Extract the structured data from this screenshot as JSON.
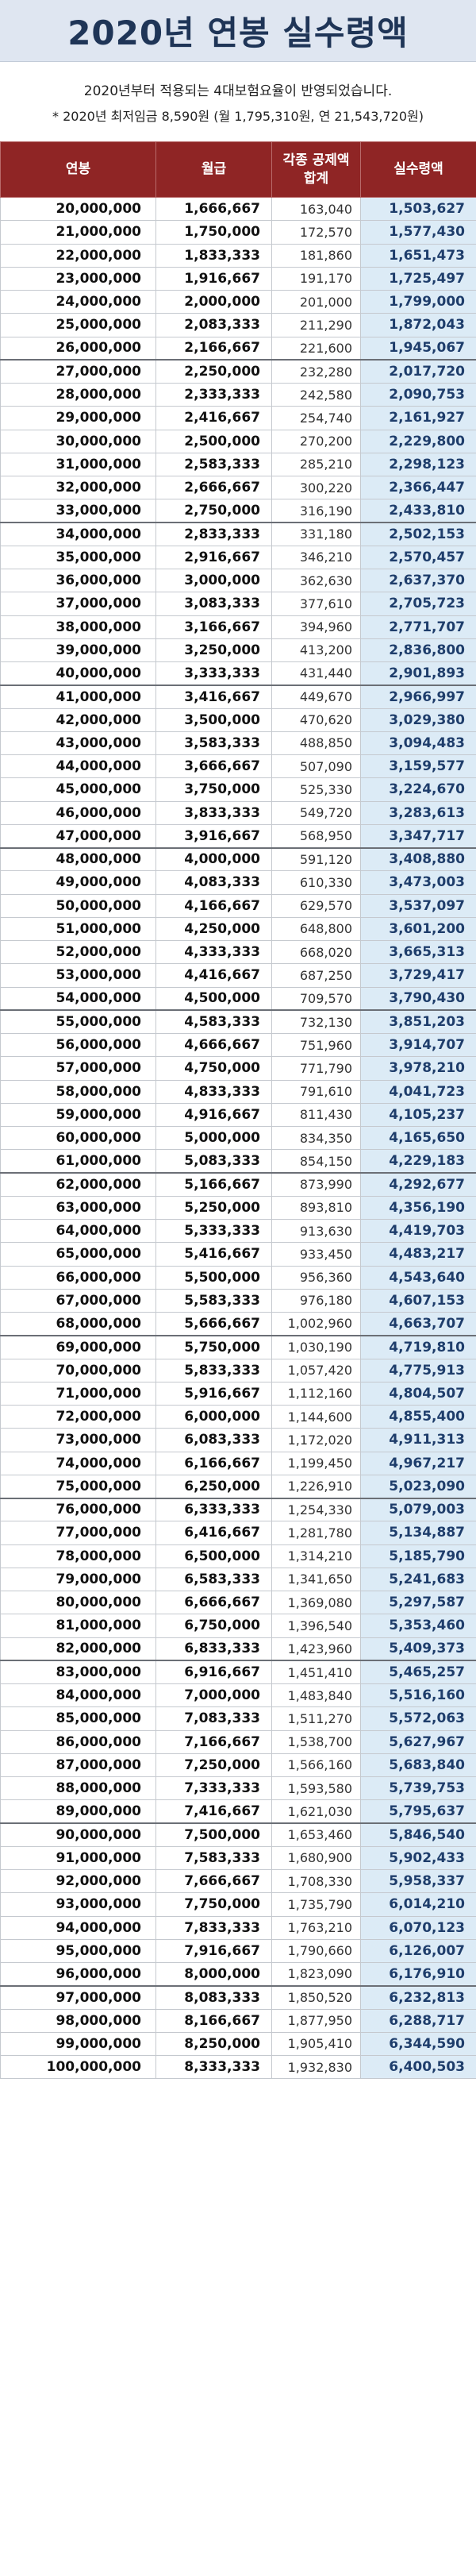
{
  "title": "2020년 연봉 실수령액",
  "notes": {
    "line1": "2020년부터 적용되는 4대보험요율이 반영되었습니다.",
    "line2": "* 2020년 최저임금 8,590원 (월 1,795,310원, 연 21,543,720원)"
  },
  "table": {
    "headers": [
      "연봉",
      "월급",
      "각종 공제액\n합계",
      "실수령액"
    ],
    "rows": [
      [
        "20,000,000",
        "1,666,667",
        "163,040",
        "1,503,627"
      ],
      [
        "21,000,000",
        "1,750,000",
        "172,570",
        "1,577,430"
      ],
      [
        "22,000,000",
        "1,833,333",
        "181,860",
        "1,651,473"
      ],
      [
        "23,000,000",
        "1,916,667",
        "191,170",
        "1,725,497"
      ],
      [
        "24,000,000",
        "2,000,000",
        "201,000",
        "1,799,000"
      ],
      [
        "25,000,000",
        "2,083,333",
        "211,290",
        "1,872,043"
      ],
      [
        "26,000,000",
        "2,166,667",
        "221,600",
        "1,945,067"
      ],
      [
        "27,000,000",
        "2,250,000",
        "232,280",
        "2,017,720"
      ],
      [
        "28,000,000",
        "2,333,333",
        "242,580",
        "2,090,753"
      ],
      [
        "29,000,000",
        "2,416,667",
        "254,740",
        "2,161,927"
      ],
      [
        "30,000,000",
        "2,500,000",
        "270,200",
        "2,229,800"
      ],
      [
        "31,000,000",
        "2,583,333",
        "285,210",
        "2,298,123"
      ],
      [
        "32,000,000",
        "2,666,667",
        "300,220",
        "2,366,447"
      ],
      [
        "33,000,000",
        "2,750,000",
        "316,190",
        "2,433,810"
      ],
      [
        "34,000,000",
        "2,833,333",
        "331,180",
        "2,502,153"
      ],
      [
        "35,000,000",
        "2,916,667",
        "346,210",
        "2,570,457"
      ],
      [
        "36,000,000",
        "3,000,000",
        "362,630",
        "2,637,370"
      ],
      [
        "37,000,000",
        "3,083,333",
        "377,610",
        "2,705,723"
      ],
      [
        "38,000,000",
        "3,166,667",
        "394,960",
        "2,771,707"
      ],
      [
        "39,000,000",
        "3,250,000",
        "413,200",
        "2,836,800"
      ],
      [
        "40,000,000",
        "3,333,333",
        "431,440",
        "2,901,893"
      ],
      [
        "41,000,000",
        "3,416,667",
        "449,670",
        "2,966,997"
      ],
      [
        "42,000,000",
        "3,500,000",
        "470,620",
        "3,029,380"
      ],
      [
        "43,000,000",
        "3,583,333",
        "488,850",
        "3,094,483"
      ],
      [
        "44,000,000",
        "3,666,667",
        "507,090",
        "3,159,577"
      ],
      [
        "45,000,000",
        "3,750,000",
        "525,330",
        "3,224,670"
      ],
      [
        "46,000,000",
        "3,833,333",
        "549,720",
        "3,283,613"
      ],
      [
        "47,000,000",
        "3,916,667",
        "568,950",
        "3,347,717"
      ],
      [
        "48,000,000",
        "4,000,000",
        "591,120",
        "3,408,880"
      ],
      [
        "49,000,000",
        "4,083,333",
        "610,330",
        "3,473,003"
      ],
      [
        "50,000,000",
        "4,166,667",
        "629,570",
        "3,537,097"
      ],
      [
        "51,000,000",
        "4,250,000",
        "648,800",
        "3,601,200"
      ],
      [
        "52,000,000",
        "4,333,333",
        "668,020",
        "3,665,313"
      ],
      [
        "53,000,000",
        "4,416,667",
        "687,250",
        "3,729,417"
      ],
      [
        "54,000,000",
        "4,500,000",
        "709,570",
        "3,790,430"
      ],
      [
        "55,000,000",
        "4,583,333",
        "732,130",
        "3,851,203"
      ],
      [
        "56,000,000",
        "4,666,667",
        "751,960",
        "3,914,707"
      ],
      [
        "57,000,000",
        "4,750,000",
        "771,790",
        "3,978,210"
      ],
      [
        "58,000,000",
        "4,833,333",
        "791,610",
        "4,041,723"
      ],
      [
        "59,000,000",
        "4,916,667",
        "811,430",
        "4,105,237"
      ],
      [
        "60,000,000",
        "5,000,000",
        "834,350",
        "4,165,650"
      ],
      [
        "61,000,000",
        "5,083,333",
        "854,150",
        "4,229,183"
      ],
      [
        "62,000,000",
        "5,166,667",
        "873,990",
        "4,292,677"
      ],
      [
        "63,000,000",
        "5,250,000",
        "893,810",
        "4,356,190"
      ],
      [
        "64,000,000",
        "5,333,333",
        "913,630",
        "4,419,703"
      ],
      [
        "65,000,000",
        "5,416,667",
        "933,450",
        "4,483,217"
      ],
      [
        "66,000,000",
        "5,500,000",
        "956,360",
        "4,543,640"
      ],
      [
        "67,000,000",
        "5,583,333",
        "976,180",
        "4,607,153"
      ],
      [
        "68,000,000",
        "5,666,667",
        "1,002,960",
        "4,663,707"
      ],
      [
        "69,000,000",
        "5,750,000",
        "1,030,190",
        "4,719,810"
      ],
      [
        "70,000,000",
        "5,833,333",
        "1,057,420",
        "4,775,913"
      ],
      [
        "71,000,000",
        "5,916,667",
        "1,112,160",
        "4,804,507"
      ],
      [
        "72,000,000",
        "6,000,000",
        "1,144,600",
        "4,855,400"
      ],
      [
        "73,000,000",
        "6,083,333",
        "1,172,020",
        "4,911,313"
      ],
      [
        "74,000,000",
        "6,166,667",
        "1,199,450",
        "4,967,217"
      ],
      [
        "75,000,000",
        "6,250,000",
        "1,226,910",
        "5,023,090"
      ],
      [
        "76,000,000",
        "6,333,333",
        "1,254,330",
        "5,079,003"
      ],
      [
        "77,000,000",
        "6,416,667",
        "1,281,780",
        "5,134,887"
      ],
      [
        "78,000,000",
        "6,500,000",
        "1,314,210",
        "5,185,790"
      ],
      [
        "79,000,000",
        "6,583,333",
        "1,341,650",
        "5,241,683"
      ],
      [
        "80,000,000",
        "6,666,667",
        "1,369,080",
        "5,297,587"
      ],
      [
        "81,000,000",
        "6,750,000",
        "1,396,540",
        "5,353,460"
      ],
      [
        "82,000,000",
        "6,833,333",
        "1,423,960",
        "5,409,373"
      ],
      [
        "83,000,000",
        "6,916,667",
        "1,451,410",
        "5,465,257"
      ],
      [
        "84,000,000",
        "7,000,000",
        "1,483,840",
        "5,516,160"
      ],
      [
        "85,000,000",
        "7,083,333",
        "1,511,270",
        "5,572,063"
      ],
      [
        "86,000,000",
        "7,166,667",
        "1,538,700",
        "5,627,967"
      ],
      [
        "87,000,000",
        "7,250,000",
        "1,566,160",
        "5,683,840"
      ],
      [
        "88,000,000",
        "7,333,333",
        "1,593,580",
        "5,739,753"
      ],
      [
        "89,000,000",
        "7,416,667",
        "1,621,030",
        "5,795,637"
      ],
      [
        "90,000,000",
        "7,500,000",
        "1,653,460",
        "5,846,540"
      ],
      [
        "91,000,000",
        "7,583,333",
        "1,680,900",
        "5,902,433"
      ],
      [
        "92,000,000",
        "7,666,667",
        "1,708,330",
        "5,958,337"
      ],
      [
        "93,000,000",
        "7,750,000",
        "1,735,790",
        "6,014,210"
      ],
      [
        "94,000,000",
        "7,833,333",
        "1,763,210",
        "6,070,123"
      ],
      [
        "95,000,000",
        "7,916,667",
        "1,790,660",
        "6,126,007"
      ],
      [
        "96,000,000",
        "8,000,000",
        "1,823,090",
        "6,176,910"
      ],
      [
        "97,000,000",
        "8,083,333",
        "1,850,520",
        "6,232,813"
      ],
      [
        "98,000,000",
        "8,166,667",
        "1,877,950",
        "6,288,717"
      ],
      [
        "99,000,000",
        "8,250,000",
        "1,905,410",
        "6,344,590"
      ],
      [
        "100,000,000",
        "8,333,333",
        "1,932,830",
        "6,400,503"
      ]
    ]
  }
}
